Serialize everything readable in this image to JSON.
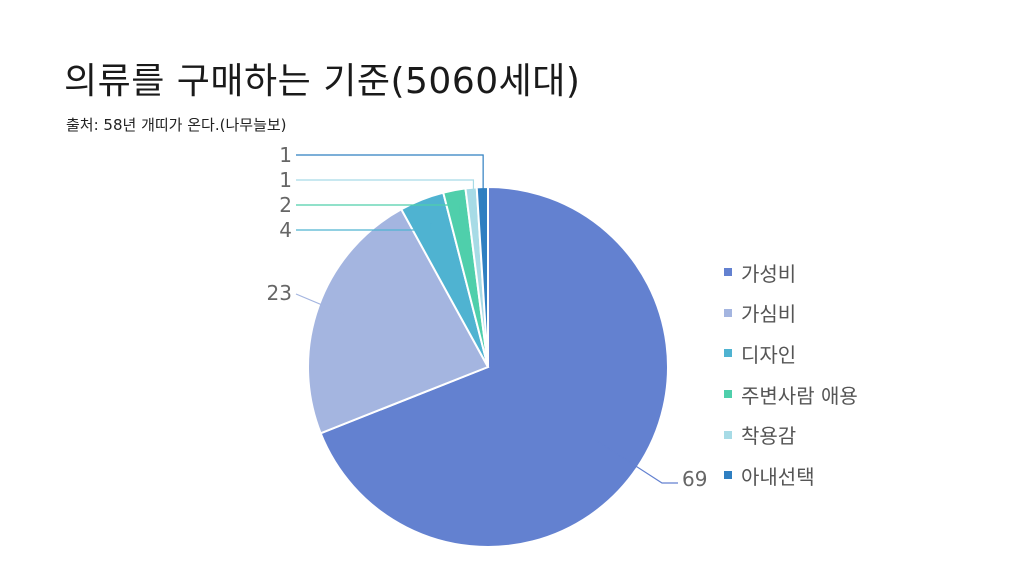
{
  "title": "의류를 구매하는 기준(5060세대)",
  "source": "출처: 58년 개띠가 온다.(나무늘보)",
  "chart_data": {
    "type": "pie",
    "categories": [
      "가성비",
      "가심비",
      "디자인",
      "주변사람 애용",
      "착용감",
      "아내선택"
    ],
    "values": [
      69,
      23,
      4,
      2,
      1,
      1
    ],
    "colors": [
      "#6381d0",
      "#a4b5e0",
      "#4fb3d1",
      "#4fcfab",
      "#a7dbe6",
      "#2f7fc1"
    ],
    "data_labels": [
      "69",
      "23",
      "4",
      "2",
      "1",
      "1"
    ],
    "start_angle_deg": 0,
    "direction": "clockwise",
    "legend_position": "right"
  }
}
